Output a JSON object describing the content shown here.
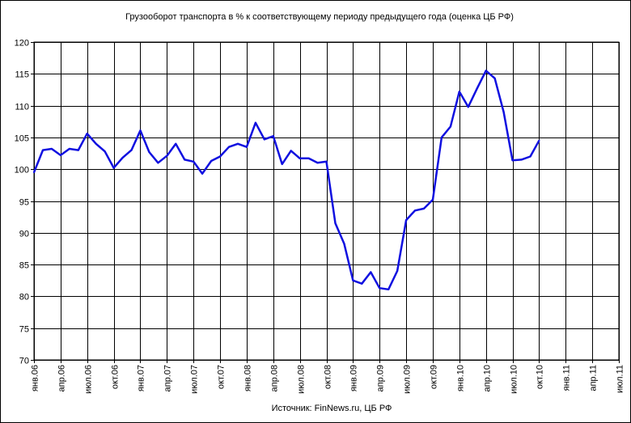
{
  "chart_data": {
    "type": "line",
    "title": "Грузооборот транспорта в % к соответствующему периоду предыдущего года (оценка ЦБ РФ)",
    "source": "Источник: FinNews.ru, ЦБ РФ",
    "ylim": [
      70,
      120
    ],
    "y_ticks": [
      "70",
      "75",
      "80",
      "85",
      "90",
      "95",
      "100",
      "105",
      "110",
      "115",
      "120"
    ],
    "x_tick_labels": [
      "янв.06",
      "апр.06",
      "июл.06",
      "окт.06",
      "янв.07",
      "апр.07",
      "июл.07",
      "окт.07",
      "янв.08",
      "апр.08",
      "июл.08",
      "окт.08",
      "янв.09",
      "апр.09",
      "июл.09",
      "окт.09",
      "янв.10",
      "апр.10",
      "июл.10",
      "окт.10",
      "янв.11",
      "апр.11",
      "июл.11"
    ],
    "grid": true,
    "legend": "none",
    "colors": {
      "line": "#1010e0",
      "grid": "#000000"
    },
    "series": [
      {
        "values": [
          99.5,
          103.0,
          103.2,
          102.2,
          103.2,
          103.0,
          105.6,
          104.0,
          102.8,
          100.2,
          101.8,
          103.0,
          106.1,
          102.7,
          101.0,
          102.1,
          104.0,
          101.5,
          101.2,
          99.3,
          101.3,
          102.0,
          103.5,
          104.0,
          103.5,
          107.3,
          104.7,
          105.2,
          100.8,
          102.9,
          101.7,
          101.7,
          101.0,
          101.2,
          91.5,
          88.3,
          82.5,
          82.0,
          83.8,
          81.3,
          81.1,
          84.0,
          92.0,
          93.5,
          93.8,
          95.2,
          105.0,
          106.7,
          112.2,
          109.8,
          112.7,
          115.5,
          114.3,
          109.0,
          101.4,
          101.5,
          102.0,
          104.5
        ]
      }
    ]
  }
}
